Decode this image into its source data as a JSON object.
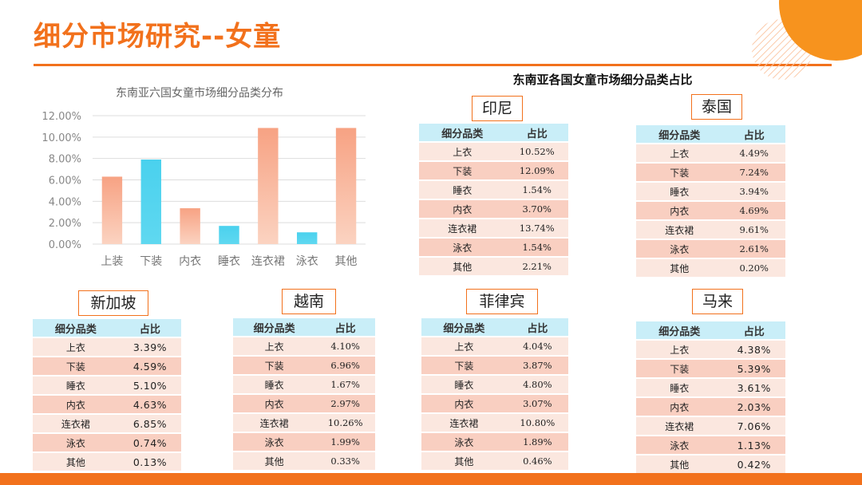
{
  "page": {
    "title": "细分市场研究--女童"
  },
  "chart_data": {
    "type": "bar",
    "title": "东南亚六国女童市场细分品类分布",
    "categories": [
      "上装",
      "下装",
      "内衣",
      "睡衣",
      "连衣裙",
      "泳衣",
      "其他"
    ],
    "values": [
      6.3,
      7.9,
      3.35,
      1.7,
      10.85,
      1.1,
      10.85
    ],
    "bar_colors": [
      "#f8a98c",
      "#4fd3ef",
      "#f8a98c",
      "#4fd3ef",
      "#f8a98c",
      "#4fd3ef",
      "#f8a98c"
    ],
    "yticks": [
      "0.00%",
      "2.00%",
      "4.00%",
      "6.00%",
      "8.00%",
      "10.00%",
      "12.00%"
    ],
    "ylim": [
      0,
      12
    ],
    "grid": true
  },
  "tables_heading": "东南亚各国女童市场细分品类占比",
  "col_headers": {
    "category": "细分品类",
    "share": "占比"
  },
  "countries": [
    {
      "name": "印尼",
      "rows": [
        [
          "上衣",
          "10.52%"
        ],
        [
          "下装",
          "12.09%"
        ],
        [
          "睡衣",
          "1.54%"
        ],
        [
          "内衣",
          "3.70%"
        ],
        [
          "连衣裙",
          "13.74%"
        ],
        [
          "泳衣",
          "1.54%"
        ],
        [
          "其他",
          "2.21%"
        ]
      ]
    },
    {
      "name": "泰国",
      "rows": [
        [
          "上衣",
          "4.49%"
        ],
        [
          "下装",
          "7.24%"
        ],
        [
          "睡衣",
          "3.94%"
        ],
        [
          "内衣",
          "4.69%"
        ],
        [
          "连衣裙",
          "9.61%"
        ],
        [
          "泳衣",
          "2.61%"
        ],
        [
          "其他",
          "0.20%"
        ]
      ]
    },
    {
      "name": "新加坡",
      "rows": [
        [
          "上衣",
          "3.39%"
        ],
        [
          "下装",
          "4.59%"
        ],
        [
          "睡衣",
          "5.10%"
        ],
        [
          "内衣",
          "4.63%"
        ],
        [
          "连衣裙",
          "6.85%"
        ],
        [
          "泳衣",
          "0.74%"
        ],
        [
          "其他",
          "0.13%"
        ]
      ]
    },
    {
      "name": "越南",
      "rows": [
        [
          "上衣",
          "4.10%"
        ],
        [
          "下装",
          "6.96%"
        ],
        [
          "睡衣",
          "1.67%"
        ],
        [
          "内衣",
          "2.97%"
        ],
        [
          "连衣裙",
          "10.26%"
        ],
        [
          "泳衣",
          "1.99%"
        ],
        [
          "其他",
          "0.33%"
        ]
      ]
    },
    {
      "name": "菲律宾",
      "rows": [
        [
          "上衣",
          "4.04%"
        ],
        [
          "下装",
          "3.87%"
        ],
        [
          "睡衣",
          "4.80%"
        ],
        [
          "内衣",
          "3.07%"
        ],
        [
          "连衣裙",
          "10.80%"
        ],
        [
          "泳衣",
          "1.89%"
        ],
        [
          "其他",
          "0.46%"
        ]
      ]
    },
    {
      "name": "马来",
      "rows": [
        [
          "上衣",
          "4.38%"
        ],
        [
          "下装",
          "5.39%"
        ],
        [
          "睡衣",
          "3.61%"
        ],
        [
          "内衣",
          "2.03%"
        ],
        [
          "连衣裙",
          "7.06%"
        ],
        [
          "泳衣",
          "1.13%"
        ],
        [
          "其他",
          "0.42%"
        ]
      ]
    }
  ]
}
